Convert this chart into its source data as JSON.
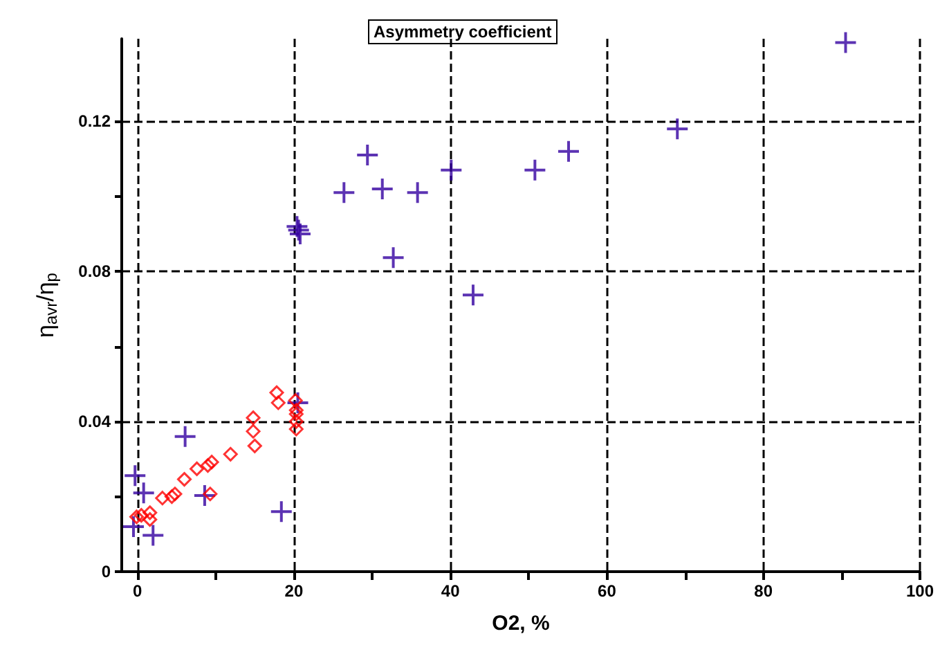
{
  "chart_data": {
    "type": "scatter",
    "title": "Asymmetry coefficient",
    "xlabel": "O2, %",
    "ylabel": "η$_{avr}$/η$_{p}$",
    "xlim": [
      -2,
      100
    ],
    "ylim": [
      0,
      0.142
    ],
    "xticks": [
      0,
      {
        "value": 10,
        "label": null
      },
      20,
      {
        "value": 30,
        "label": null
      },
      40,
      {
        "value": 50,
        "label": null
      },
      60,
      {
        "value": 70,
        "label": null
      },
      80,
      {
        "value": 90,
        "label": null
      },
      100
    ],
    "yticks": [
      0,
      {
        "value": 0.02,
        "label": null
      },
      0.04,
      {
        "value": 0.06,
        "label": null
      },
      0.08,
      {
        "value": 0.1,
        "label": null
      },
      0.12
    ],
    "grid": true,
    "line_style": "dashed",
    "series": [
      {
        "color": "#3300a0",
        "marker": "cross",
        "x": [
          90.5,
          69,
          55.1,
          50.8,
          40.1,
          35.8,
          31.3,
          26.4,
          29.4,
          32.7,
          42.9,
          20.4,
          20.6,
          20.8,
          20.5,
          6.1,
          -0.3,
          0.8,
          -0.5,
          2.0,
          8.6,
          18.4
        ],
        "values": [
          0.141,
          0.118,
          0.112,
          0.107,
          0.107,
          0.101,
          0.102,
          0.101,
          0.111,
          0.0837,
          0.0737,
          0.092,
          0.091,
          0.09,
          0.045,
          0.036,
          0.0256,
          0.021,
          0.012,
          0.0097,
          0.0203,
          0.016
        ]
      },
      {
        "color": "#ff0000",
        "marker": "diamond",
        "x": [
          -0.1,
          0.5,
          1.6,
          1.6,
          3.2,
          4.4,
          4.8,
          6.0,
          7.6,
          9.0,
          9.5,
          9.3,
          11.9,
          14.8,
          14.8,
          15.0,
          17.8,
          18.0,
          20.2,
          20.3,
          20.3,
          20.3,
          20.3
        ],
        "values": [
          0.0146,
          0.015,
          0.0157,
          0.0139,
          0.0196,
          0.02,
          0.0207,
          0.0246,
          0.0274,
          0.0283,
          0.0292,
          0.0207,
          0.0313,
          0.041,
          0.0374,
          0.0335,
          0.0477,
          0.045,
          0.0456,
          0.043,
          0.042,
          0.04,
          0.038
        ]
      }
    ]
  }
}
